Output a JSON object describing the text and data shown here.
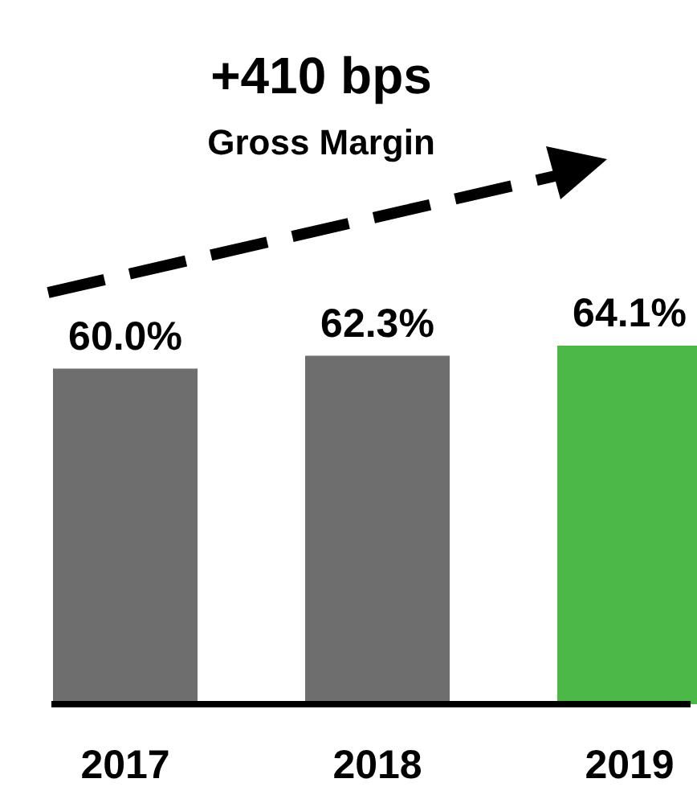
{
  "chart_data": {
    "type": "bar",
    "title": "+410 bps",
    "subtitle": "Gross Margin",
    "categories": [
      "2017",
      "2018",
      "2019"
    ],
    "values": [
      60.0,
      62.3,
      64.1
    ],
    "value_labels": [
      "60.0%",
      "62.3%",
      "64.1%"
    ],
    "colors": [
      "#6e6e6e",
      "#6e6e6e",
      "#4cb848"
    ],
    "tick_labels": "x"
  }
}
